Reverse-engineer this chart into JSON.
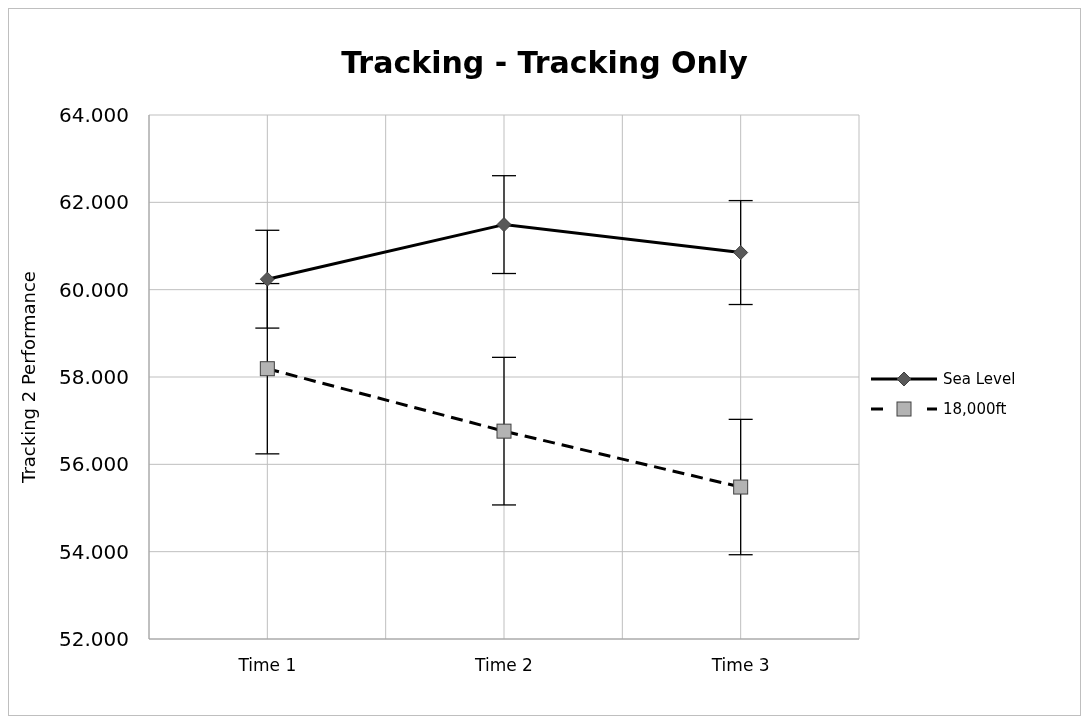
{
  "chart_data": {
    "type": "line",
    "title": "Tracking - Tracking Only",
    "ylabel": "Tracking 2 Performance",
    "categories": [
      "Time 1",
      "Time 2",
      "Time 3"
    ],
    "series": [
      {
        "name": "Sea Level",
        "color": "#595959",
        "values": [
          60.24,
          61.49,
          60.85
        ],
        "errors": [
          1.12,
          1.12,
          1.19
        ],
        "marker": "diamond",
        "line_style": "solid"
      },
      {
        "name": "18,000ft",
        "color": "#b3b3b3",
        "values": [
          58.19,
          56.76,
          55.48
        ],
        "errors": [
          1.95,
          1.69,
          1.55
        ],
        "marker": "square",
        "line_style": "dashed"
      }
    ],
    "ylim": [
      52,
      64
    ],
    "yticks": [
      {
        "value": 52,
        "label": "52.000"
      },
      {
        "value": 54,
        "label": "54.000"
      },
      {
        "value": 56,
        "label": "56.000"
      },
      {
        "value": 58,
        "label": "58.000"
      },
      {
        "value": 60,
        "label": "60.000"
      },
      {
        "value": 62,
        "label": "62.000"
      },
      {
        "value": 64,
        "label": "64.000"
      }
    ],
    "grid": true,
    "legend": "right"
  }
}
